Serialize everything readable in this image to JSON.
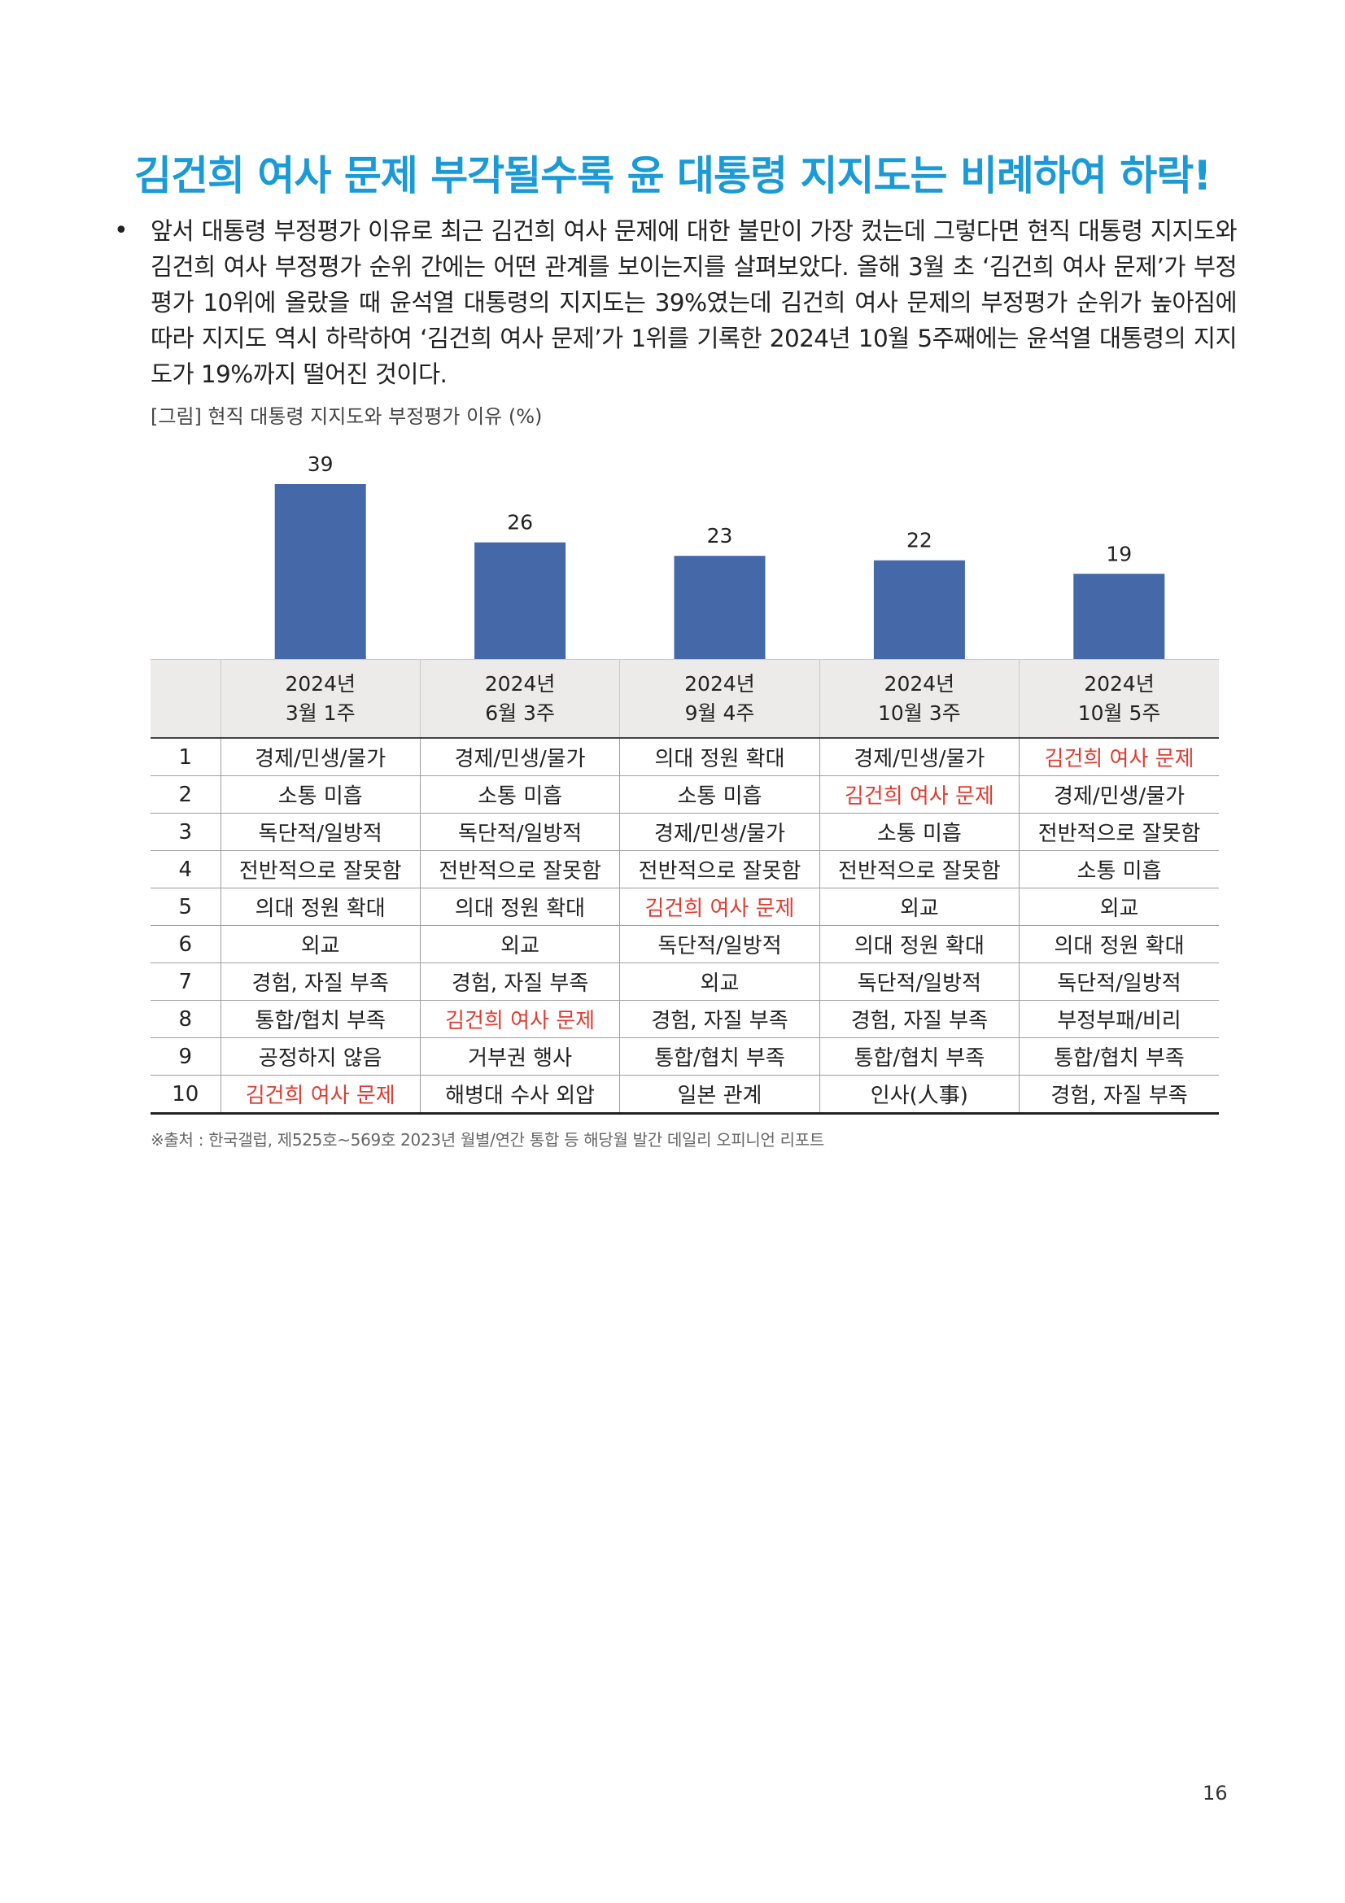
{
  "title": "김건희 여사 문제 부각될수록 윤 대통령 지지도는 비례하여 하락!",
  "bullet": "•",
  "paragraph": "앞서 대통령 부정평가 이유로 최근 김건희 여사 문제에 대한 불만이 가장 컸는데 그렇다면 현직 대통령 지지도와 김건희 여사 부정평가 순위 간에는 어떤 관계를 보이는지를 살펴보았다. 올해 3월 초 ‘김건희 여사 문제’가 부정평가 10위에 올랐을 때 윤석열 대통령의 지지도는 39%였는데 김건희 여사 문제의 부정평가 순위가 높아짐에 따라 지지도 역시 하락하여 ‘김건희 여사 문제’가 1위를 기록한 2024년 10월 5주째에는 윤석열 대통령의 지지도가 19%까지 떨어진 것이다.",
  "figure_caption": "[그림] 현직 대통령 지지도와 부정평가 이유 (%)",
  "chart_data": {
    "type": "bar",
    "categories": [
      "2024년 3월 1주",
      "2024년 6월 3주",
      "2024년 9월 4주",
      "2024년 10월 3주",
      "2024년 10월 5주"
    ],
    "values": [
      39,
      26,
      23,
      22,
      19
    ],
    "title": "[그림] 현직 대통령 지지도와 부정평가 이유 (%)",
    "xlabel": "",
    "ylabel": "",
    "ylim": [
      0,
      39
    ],
    "grid": false,
    "bar_color": "#4468a8",
    "data_labels": [
      "39",
      "26",
      "23",
      "22",
      "19"
    ]
  },
  "table": {
    "headers": [
      {
        "line1": "2024년",
        "line2": "3월 1주"
      },
      {
        "line1": "2024년",
        "line2": "6월 3주"
      },
      {
        "line1": "2024년",
        "line2": "9월 4주"
      },
      {
        "line1": "2024년",
        "line2": "10월 3주"
      },
      {
        "line1": "2024년",
        "line2": "10월 5주"
      }
    ],
    "rows": [
      {
        "rank": "1",
        "cells": [
          "경제/민생/물가",
          "경제/민생/물가",
          "의대 정원 확대",
          "경제/민생/물가",
          "김건희 여사 문제"
        ]
      },
      {
        "rank": "2",
        "cells": [
          "소통 미흡",
          "소통 미흡",
          "소통 미흡",
          "김건희 여사 문제",
          "경제/민생/물가"
        ]
      },
      {
        "rank": "3",
        "cells": [
          "독단적/일방적",
          "독단적/일방적",
          "경제/민생/물가",
          "소통 미흡",
          "전반적으로 잘못함"
        ]
      },
      {
        "rank": "4",
        "cells": [
          "전반적으로 잘못함",
          "전반적으로 잘못함",
          "전반적으로 잘못함",
          "전반적으로 잘못함",
          "소통 미흡"
        ]
      },
      {
        "rank": "5",
        "cells": [
          "의대 정원 확대",
          "의대 정원 확대",
          "김건희 여사 문제",
          "외교",
          "외교"
        ]
      },
      {
        "rank": "6",
        "cells": [
          "외교",
          "외교",
          "독단적/일방적",
          "의대 정원 확대",
          "의대 정원 확대"
        ]
      },
      {
        "rank": "7",
        "cells": [
          "경험, 자질 부족",
          "경험, 자질 부족",
          "외교",
          "독단적/일방적",
          "독단적/일방적"
        ]
      },
      {
        "rank": "8",
        "cells": [
          "통합/협치 부족",
          "김건희 여사 문제",
          "경험, 자질 부족",
          "경험, 자질 부족",
          "부정부패/비리"
        ]
      },
      {
        "rank": "9",
        "cells": [
          "공정하지 않음",
          "거부권 행사",
          "통합/협치 부족",
          "통합/협치 부족",
          "통합/협치 부족"
        ]
      },
      {
        "rank": "10",
        "cells": [
          "김건희 여사 문제",
          "해병대 수사 외압",
          "일본 관계",
          "인사(人事)",
          "경험, 자질 부족"
        ]
      }
    ],
    "highlight_text": "김건희 여사 문제",
    "highlight_color": "#e03c31"
  },
  "source": "※출처 : 한국갤럽, 제525호~569호 2023년 월별/연간 통합 등 해당월 발간 데일리 오피니언 리포트",
  "page_number": "16"
}
